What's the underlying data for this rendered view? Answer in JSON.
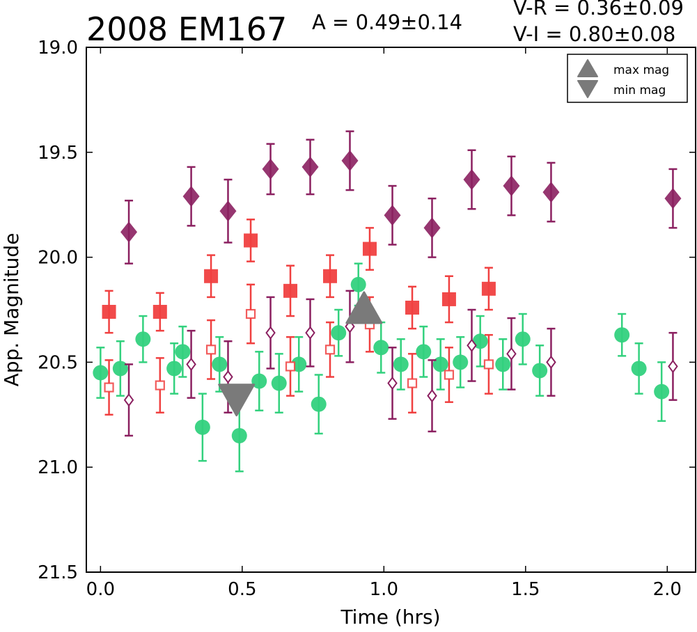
{
  "chart_data": {
    "type": "scatter",
    "title": "2008 EM167",
    "annotations": {
      "amplitude": "A  = 0.49±0.14",
      "v_r": "V-R = 0.36±0.09",
      "v_i": "V-I  = 0.80±0.08"
    },
    "xlabel": "Time (hrs)",
    "ylabel": "App. Magnitude",
    "xlim": [
      -0.05,
      2.1
    ],
    "ylim": [
      21.5,
      19.0
    ],
    "y_inverted": true,
    "grid": false,
    "x_ticks": [
      "0.0",
      "0.5",
      "1.0",
      "1.5",
      "2.0"
    ],
    "x_tick_values": [
      0.0,
      0.5,
      1.0,
      1.5,
      2.0
    ],
    "y_ticks": [
      "19.0",
      "19.5",
      "20.0",
      "20.5",
      "21.0",
      "21.5"
    ],
    "y_tick_values": [
      19.0,
      19.5,
      20.0,
      20.5,
      21.0,
      21.5
    ],
    "legend": {
      "position": "top-right",
      "entries": [
        {
          "label": "max mag",
          "marker": "triangle-up"
        },
        {
          "label": "min mag",
          "marker": "triangle-down"
        }
      ]
    },
    "series": [
      {
        "marker": "circle",
        "color": "#33d17e",
        "filled": true,
        "points": [
          [
            0.0,
            20.55,
            0.12
          ],
          [
            0.07,
            20.53,
            0.13
          ],
          [
            0.15,
            20.39,
            0.11
          ],
          [
            0.26,
            20.53,
            0.12
          ],
          [
            0.29,
            20.45,
            0.12
          ],
          [
            0.36,
            20.81,
            0.16
          ],
          [
            0.42,
            20.51,
            0.13
          ],
          [
            0.49,
            20.85,
            0.17
          ],
          [
            0.56,
            20.59,
            0.14
          ],
          [
            0.63,
            20.6,
            0.14
          ],
          [
            0.7,
            20.51,
            0.13
          ],
          [
            0.77,
            20.7,
            0.14
          ],
          [
            0.84,
            20.36,
            0.11
          ],
          [
            0.91,
            20.13,
            0.1
          ],
          [
            0.99,
            20.43,
            0.12
          ],
          [
            1.06,
            20.51,
            0.12
          ],
          [
            1.14,
            20.45,
            0.12
          ],
          [
            1.2,
            20.51,
            0.12
          ],
          [
            1.27,
            20.5,
            0.12
          ],
          [
            1.34,
            20.4,
            0.12
          ],
          [
            1.42,
            20.51,
            0.12
          ],
          [
            1.49,
            20.39,
            0.12
          ],
          [
            1.55,
            20.54,
            0.12
          ],
          [
            1.84,
            20.37,
            0.1
          ],
          [
            1.9,
            20.53,
            0.12
          ],
          [
            1.98,
            20.64,
            0.14
          ]
        ]
      },
      {
        "marker": "square",
        "color": "#f04040",
        "filled": true,
        "points": [
          [
            0.03,
            20.26,
            0.1
          ],
          [
            0.21,
            20.26,
            0.09
          ],
          [
            0.39,
            20.09,
            0.1
          ],
          [
            0.53,
            19.92,
            0.1
          ],
          [
            0.67,
            20.16,
            0.12
          ],
          [
            0.81,
            20.09,
            0.1
          ],
          [
            0.95,
            19.96,
            0.1
          ],
          [
            1.1,
            20.24,
            0.1
          ],
          [
            1.23,
            20.2,
            0.11
          ],
          [
            1.37,
            20.15,
            0.1
          ]
        ]
      },
      {
        "marker": "square",
        "color": "#f04040",
        "filled": false,
        "points": [
          [
            0.03,
            20.62,
            0.13
          ],
          [
            0.21,
            20.61,
            0.13
          ],
          [
            0.39,
            20.44,
            0.14
          ],
          [
            0.53,
            20.27,
            0.14
          ],
          [
            0.67,
            20.52,
            0.14
          ],
          [
            0.81,
            20.44,
            0.13
          ],
          [
            0.95,
            20.32,
            0.13
          ],
          [
            1.1,
            20.6,
            0.14
          ],
          [
            1.23,
            20.56,
            0.13
          ],
          [
            1.37,
            20.51,
            0.14
          ]
        ]
      },
      {
        "marker": "diamond",
        "color": "#8b2060",
        "filled": true,
        "points": [
          [
            0.1,
            19.88,
            0.15
          ],
          [
            0.32,
            19.71,
            0.14
          ],
          [
            0.45,
            19.78,
            0.15
          ],
          [
            0.6,
            19.58,
            0.12
          ],
          [
            0.74,
            19.57,
            0.13
          ],
          [
            0.88,
            19.54,
            0.14
          ],
          [
            1.03,
            19.8,
            0.14
          ],
          [
            1.17,
            19.86,
            0.14
          ],
          [
            1.31,
            19.63,
            0.14
          ],
          [
            1.45,
            19.66,
            0.14
          ],
          [
            1.59,
            19.69,
            0.14
          ],
          [
            2.02,
            19.72,
            0.14
          ]
        ]
      },
      {
        "marker": "diamond",
        "color": "#8b2060",
        "filled": false,
        "points": [
          [
            0.1,
            20.68,
            0.17
          ],
          [
            0.32,
            20.51,
            0.16
          ],
          [
            0.45,
            20.57,
            0.17
          ],
          [
            0.6,
            20.36,
            0.17
          ],
          [
            0.74,
            20.36,
            0.16
          ],
          [
            0.88,
            20.33,
            0.17
          ],
          [
            1.03,
            20.6,
            0.17
          ],
          [
            1.17,
            20.66,
            0.17
          ],
          [
            1.31,
            20.42,
            0.17
          ],
          [
            1.45,
            20.46,
            0.17
          ],
          [
            1.59,
            20.5,
            0.16
          ],
          [
            2.02,
            20.52,
            0.16
          ]
        ]
      }
    ],
    "markers": [
      {
        "label": "max mag",
        "marker": "triangle-up",
        "x": 0.93,
        "y": 20.24,
        "color": "#7a7a7a"
      },
      {
        "label": "min mag",
        "marker": "triangle-down",
        "x": 0.48,
        "y": 20.68,
        "color": "#7a7a7a"
      }
    ]
  }
}
